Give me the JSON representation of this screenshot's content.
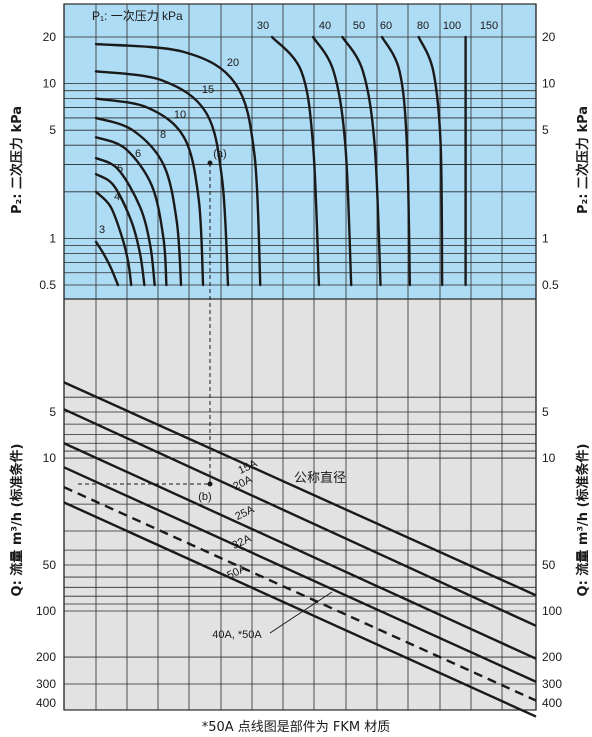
{
  "colors": {
    "upper_panel": "#aedcf4",
    "lower_panel": "#e2e2e2",
    "grid": "#2a2a2a",
    "curve": "#1a1a1a"
  },
  "footnote": "*50A 点线图是部件为 FKM 材质",
  "chart_data": [
    {
      "type": "line",
      "title": "P₁: 一次压力 kPa",
      "ylabel": "P₂: 二次压力 kPa",
      "ytick_labels": [
        "20",
        "10",
        "5",
        "1",
        "0.5"
      ],
      "yscale": "log",
      "ylim": [
        0.4,
        24
      ],
      "grid": true,
      "series": [
        {
          "name": "3",
          "x": [
            0.0,
            0.05,
            0.1,
            0.15
          ],
          "y": [
            0.95,
            0.8,
            0.65,
            0.5
          ]
        },
        {
          "name": "4",
          "x": [
            0.0,
            0.1,
            0.18,
            0.22,
            0.24
          ],
          "y": [
            2.0,
            1.6,
            1.0,
            0.7,
            0.5
          ]
        },
        {
          "name": "5",
          "x": [
            0.0,
            0.12,
            0.24,
            0.3,
            0.33
          ],
          "y": [
            2.6,
            2.2,
            1.3,
            0.8,
            0.5
          ]
        },
        {
          "name": "6",
          "x": [
            0.0,
            0.15,
            0.3,
            0.37,
            0.4
          ],
          "y": [
            3.3,
            2.8,
            1.6,
            0.9,
            0.5
          ]
        },
        {
          "name": "8",
          "x": [
            0.0,
            0.2,
            0.38,
            0.46,
            0.48
          ],
          "y": [
            4.5,
            3.8,
            2.2,
            1.0,
            0.5
          ]
        },
        {
          "name": "10",
          "x": [
            0.0,
            0.25,
            0.46,
            0.55,
            0.58
          ],
          "y": [
            6.0,
            5.0,
            3.0,
            1.3,
            0.5
          ]
        },
        {
          "name": "15",
          "x": [
            0.0,
            0.35,
            0.6,
            0.7,
            0.73
          ],
          "y": [
            8.0,
            7.0,
            4.5,
            1.8,
            0.5
          ]
        },
        {
          "name": "20",
          "x": [
            0.0,
            0.45,
            0.75,
            0.86,
            0.9
          ],
          "y": [
            12.0,
            10.5,
            6.5,
            2.4,
            0.5
          ]
        },
        {
          "name": "30",
          "x": [
            0.0,
            0.6,
            0.95,
            1.08,
            1.12
          ],
          "y": [
            18.0,
            16.0,
            10.0,
            3.5,
            0.5
          ]
        },
        {
          "name": "40",
          "x": [
            1.2,
            1.4,
            1.48,
            1.52
          ],
          "y": [
            20.0,
            12.0,
            4.0,
            0.5
          ]
        },
        {
          "name": "50",
          "x": [
            1.48,
            1.62,
            1.7,
            1.74
          ],
          "y": [
            20.0,
            12.0,
            4.0,
            0.5
          ]
        },
        {
          "name": "60",
          "x": [
            1.68,
            1.82,
            1.9,
            1.94
          ],
          "y": [
            20.0,
            12.0,
            4.0,
            0.5
          ]
        },
        {
          "name": "80",
          "x": [
            1.95,
            2.07,
            2.12,
            2.14
          ],
          "y": [
            20.0,
            12.0,
            4.0,
            0.5
          ]
        },
        {
          "name": "100",
          "x": [
            2.2,
            2.3,
            2.35,
            2.36
          ],
          "y": [
            20.0,
            12.0,
            4.0,
            0.5
          ]
        },
        {
          "name": "150",
          "x": [
            2.52,
            2.52
          ],
          "y": [
            20.0,
            0.5
          ]
        }
      ],
      "annotations": [
        "(a)"
      ]
    },
    {
      "type": "line",
      "title": "公称直径",
      "ylabel": "Q: 流量 m³/h (标准条件)",
      "ytick_labels": [
        "5",
        "10",
        "50",
        "100",
        "200",
        "300",
        "400"
      ],
      "yscale": "log",
      "ylim": [
        3.8,
        400
      ],
      "ylim_note": "y axis increases downward",
      "grid": true,
      "series": [
        {
          "name": "15A",
          "x": [
            0.0,
            3.0
          ],
          "y": [
            3.2,
            79
          ]
        },
        {
          "name": "20A",
          "x": [
            0.0,
            3.0
          ],
          "y": [
            4.8,
            125
          ]
        },
        {
          "name": "25A",
          "x": [
            0.0,
            3.0
          ],
          "y": [
            8.0,
            205
          ]
        },
        {
          "name": "32A",
          "x": [
            0.0,
            3.0
          ],
          "y": [
            11.5,
            290
          ]
        },
        {
          "name": "40A, *50A",
          "x": [
            0.0,
            3.0
          ],
          "y": [
            15.5,
            385
          ],
          "style": "dashed"
        },
        {
          "name": "50A",
          "x": [
            0.0,
            3.0
          ],
          "y": [
            19.5,
            490
          ]
        }
      ],
      "annotations": [
        "(b)"
      ]
    }
  ]
}
